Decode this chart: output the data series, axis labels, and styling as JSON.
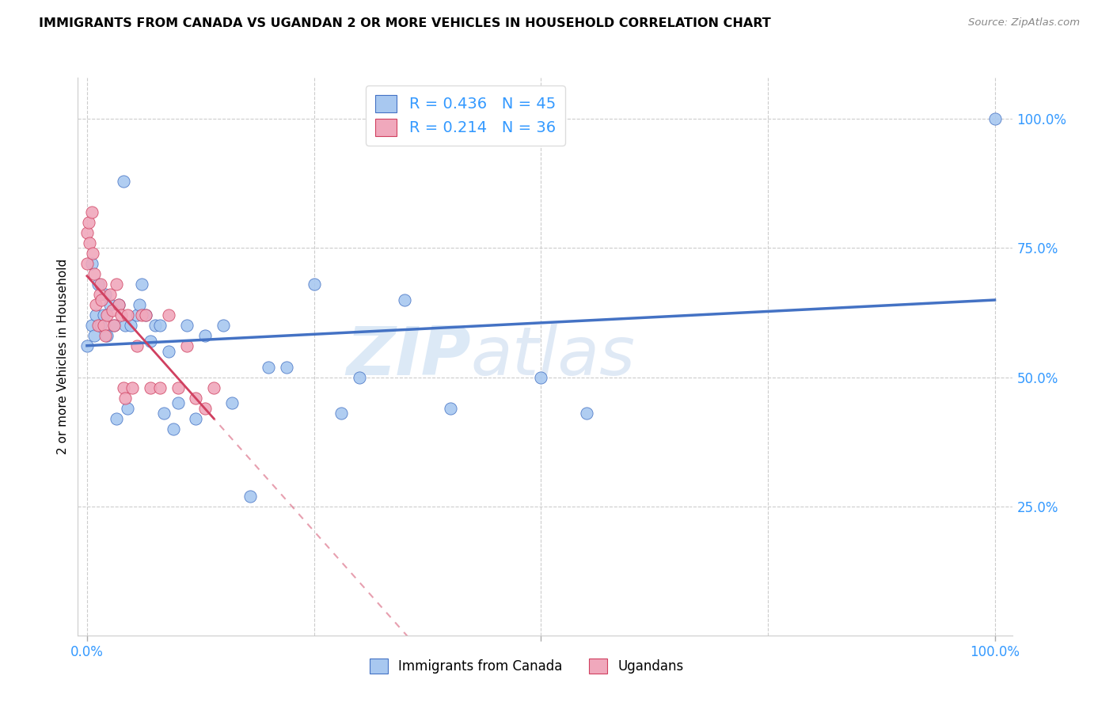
{
  "title": "IMMIGRANTS FROM CANADA VS UGANDAN 2 OR MORE VEHICLES IN HOUSEHOLD CORRELATION CHART",
  "source": "Source: ZipAtlas.com",
  "ylabel": "2 or more Vehicles in Household",
  "legend_1_label": "Immigrants from Canada",
  "legend_2_label": "Ugandans",
  "R1": 0.436,
  "N1": 45,
  "R2": 0.214,
  "N2": 36,
  "color_canada": "#A8C8F0",
  "color_uganda": "#F0A8BC",
  "trendline1_color": "#4472C4",
  "trendline2_color": "#D04060",
  "watermark_zip": "ZIP",
  "watermark_atlas": "atlas",
  "xlim": [
    0.0,
    1.0
  ],
  "ylim": [
    0.0,
    1.05
  ],
  "ytick_positions": [
    0.25,
    0.5,
    0.75,
    1.0
  ],
  "ytick_labels": [
    "25.0%",
    "50.0%",
    "75.0%",
    "100.0%"
  ],
  "canada_x": [
    0.005,
    0.04,
    0.01,
    0.02,
    0.025,
    0.005,
    0.008,
    0.015,
    0.0,
    0.012,
    0.018,
    0.022,
    0.03,
    0.035,
    0.042,
    0.048,
    0.055,
    0.06,
    0.065,
    0.07,
    0.075,
    0.08,
    0.09,
    0.1,
    0.11,
    0.12,
    0.13,
    0.15,
    0.18,
    0.2,
    0.22,
    0.25,
    0.28,
    0.3,
    0.35,
    0.4,
    0.5,
    0.55,
    1.0,
    0.032,
    0.045,
    0.058,
    0.085,
    0.095,
    0.16
  ],
  "canada_y": [
    0.6,
    0.88,
    0.62,
    0.66,
    0.64,
    0.72,
    0.58,
    0.6,
    0.56,
    0.68,
    0.62,
    0.58,
    0.6,
    0.64,
    0.6,
    0.6,
    0.62,
    0.68,
    0.62,
    0.57,
    0.6,
    0.6,
    0.55,
    0.45,
    0.6,
    0.42,
    0.58,
    0.6,
    0.27,
    0.52,
    0.52,
    0.68,
    0.43,
    0.5,
    0.65,
    0.44,
    0.5,
    0.43,
    1.0,
    0.42,
    0.44,
    0.64,
    0.43,
    0.4,
    0.45
  ],
  "uganda_x": [
    0.0,
    0.0,
    0.002,
    0.003,
    0.005,
    0.006,
    0.008,
    0.01,
    0.012,
    0.014,
    0.015,
    0.016,
    0.018,
    0.02,
    0.022,
    0.025,
    0.028,
    0.03,
    0.032,
    0.035,
    0.038,
    0.04,
    0.042,
    0.045,
    0.05,
    0.055,
    0.06,
    0.065,
    0.07,
    0.08,
    0.09,
    0.1,
    0.11,
    0.12,
    0.13,
    0.14
  ],
  "uganda_y": [
    0.78,
    0.72,
    0.8,
    0.76,
    0.82,
    0.74,
    0.7,
    0.64,
    0.6,
    0.66,
    0.68,
    0.65,
    0.6,
    0.58,
    0.62,
    0.66,
    0.63,
    0.6,
    0.68,
    0.64,
    0.62,
    0.48,
    0.46,
    0.62,
    0.48,
    0.56,
    0.62,
    0.62,
    0.48,
    0.48,
    0.62,
    0.48,
    0.56,
    0.46,
    0.44,
    0.48
  ]
}
